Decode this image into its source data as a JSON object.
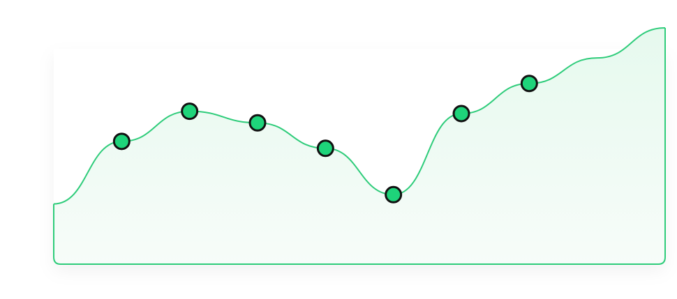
{
  "chart_data": {
    "type": "area",
    "title": "",
    "xlabel": "",
    "ylabel": "",
    "grid": false,
    "legend": "none",
    "colors": {
      "line": "#2ECC7A",
      "marker_fill": "#1ED47A",
      "marker_stroke": "#111111",
      "area_top": "#E6F9EE",
      "area_bottom": "#F7FCF9"
    },
    "x": [
      0,
      1,
      2,
      3,
      4,
      5,
      6,
      7,
      8,
      9
    ],
    "y": [
      26,
      53,
      66,
      61,
      50,
      30,
      65,
      78,
      89,
      102
    ],
    "markers": [
      1,
      2,
      3,
      4,
      5,
      6,
      7
    ],
    "xlim": [
      0,
      9
    ],
    "ylim": [
      0,
      105
    ]
  }
}
